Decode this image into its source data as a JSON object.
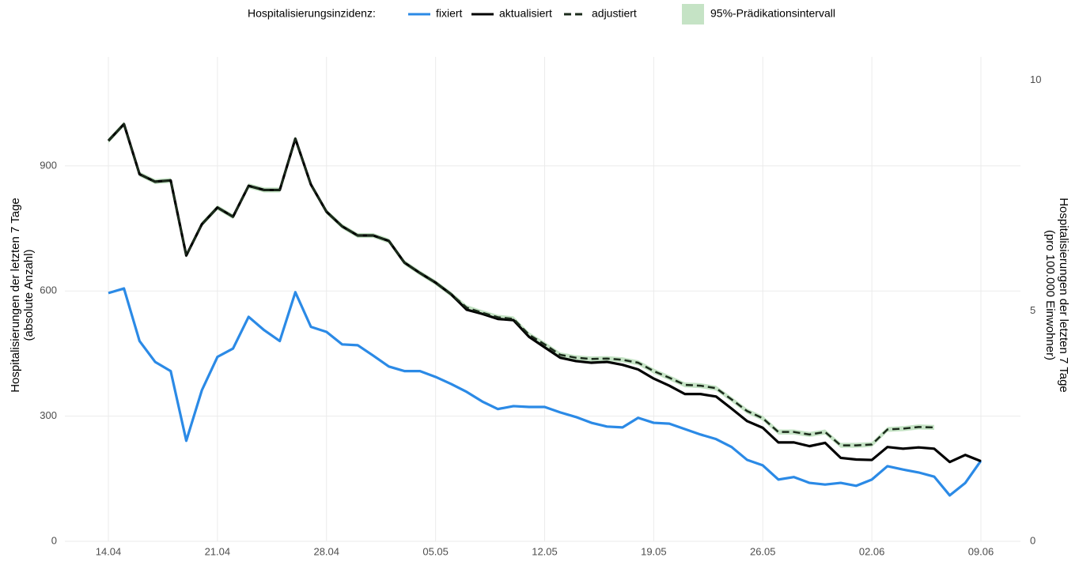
{
  "chart_data": {
    "type": "line",
    "legend_title": "Hospitalisierungsinzidenz:",
    "ylabel": [
      "Hospitalisierungen der letzten 7 Tage",
      "(absolute Anzahl)"
    ],
    "y2label": [
      "Hospitalisierungen der letzten 7 Tage",
      "(pro 100.000 Einwohner)"
    ],
    "categories": [
      "14.04",
      null,
      null,
      null,
      null,
      null,
      null,
      "21.04",
      null,
      null,
      null,
      null,
      null,
      null,
      "28.04",
      null,
      null,
      null,
      null,
      null,
      null,
      "05.05",
      null,
      null,
      null,
      null,
      null,
      null,
      "12.05",
      null,
      null,
      null,
      null,
      null,
      null,
      "19.05",
      null,
      null,
      null,
      null,
      null,
      null,
      "26.05",
      null,
      null,
      null,
      null,
      null,
      null,
      "02.06",
      null,
      null,
      null,
      null,
      null,
      null,
      "09.06"
    ],
    "series": [
      {
        "name": "fixiert",
        "color": "#2b8ae6",
        "dash": false,
        "values": [
          595,
          606,
          480,
          430,
          408,
          241,
          362,
          442,
          462,
          538,
          506,
          480,
          597,
          514,
          502,
          472,
          470,
          445,
          419,
          408,
          408,
          394,
          377,
          358,
          335,
          317,
          324,
          322,
          322,
          309,
          298,
          284,
          275,
          273,
          296,
          284,
          282,
          269,
          256,
          245,
          226,
          195,
          182,
          148,
          154,
          140,
          136,
          140,
          133,
          148,
          180,
          172,
          165,
          155,
          110,
          140,
          193
        ]
      },
      {
        "name": "aktualisiert",
        "color": "#000000",
        "dash": false,
        "values": [
          960,
          1000,
          880,
          862,
          865,
          685,
          760,
          800,
          778,
          852,
          842,
          842,
          965,
          855,
          790,
          755,
          733,
          733,
          720,
          668,
          643,
          620,
          592,
          555,
          545,
          533,
          530,
          490,
          465,
          440,
          432,
          428,
          430,
          423,
          412,
          390,
          373,
          353,
          353,
          347,
          318,
          288,
          272,
          237,
          237,
          228,
          236,
          200,
          196,
          195,
          226,
          222,
          225,
          222,
          190,
          207,
          192
        ]
      },
      {
        "name": "adjustiert",
        "color": "#1b2b1b",
        "dash": true,
        "values": [
          960,
          1000,
          880,
          862,
          865,
          685,
          760,
          800,
          778,
          852,
          842,
          842,
          965,
          855,
          790,
          755,
          733,
          733,
          720,
          668,
          643,
          620,
          592,
          560,
          548,
          537,
          533,
          495,
          472,
          447,
          440,
          437,
          438,
          435,
          428,
          408,
          392,
          375,
          373,
          367,
          340,
          312,
          295,
          262,
          262,
          256,
          262,
          230,
          230,
          232,
          268,
          270,
          274,
          273,
          null,
          null,
          null
        ]
      }
    ],
    "interval": {
      "name": "95%-Prädikationsintervall",
      "color": "#c5e3c5",
      "lower": [
        954,
        994,
        874,
        856,
        859,
        679,
        754,
        794,
        772,
        846,
        836,
        836,
        959,
        849,
        784,
        749,
        727,
        727,
        714,
        662,
        637,
        614,
        586,
        554,
        542,
        531,
        527,
        489,
        466,
        441,
        434,
        431,
        432,
        429,
        422,
        402,
        386,
        369,
        367,
        361,
        334,
        306,
        289,
        256,
        256,
        250,
        256,
        224,
        224,
        226,
        262,
        264,
        268,
        267,
        null,
        null,
        null
      ],
      "upper": [
        966,
        1006,
        886,
        868,
        871,
        691,
        766,
        806,
        784,
        858,
        848,
        848,
        971,
        861,
        796,
        761,
        739,
        739,
        726,
        674,
        649,
        626,
        598,
        566,
        554,
        543,
        539,
        501,
        478,
        453,
        446,
        443,
        444,
        441,
        434,
        414,
        398,
        381,
        379,
        373,
        346,
        318,
        301,
        268,
        268,
        262,
        268,
        236,
        236,
        238,
        274,
        276,
        280,
        279,
        null,
        null,
        null
      ]
    },
    "ylim": [
      0,
      1180
    ],
    "yticks": [
      0,
      300,
      600,
      900
    ],
    "y2lim": [
      0,
      10.68
    ],
    "y2ticks": [
      0,
      5,
      10
    ],
    "grid": true
  }
}
